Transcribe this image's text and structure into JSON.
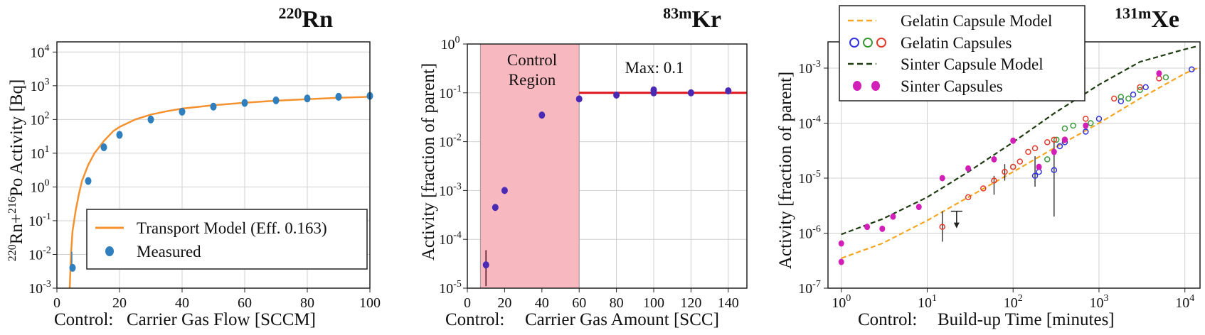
{
  "chart_data": [
    {
      "type": "scatter",
      "title": {
        "sup": "220",
        "main": "Rn"
      },
      "ylabel": {
        "sup1": "220",
        "mid": "Rn+",
        "sup2": "216",
        "end": "Po Activity [Bq]"
      },
      "xlabel": {
        "prefix": "Control:",
        "text": "Carrier Gas Flow [SCCM]"
      },
      "xlim": [
        0,
        100
      ],
      "ylim": [
        0.001,
        20000
      ],
      "yscale": "log",
      "grid": true,
      "legend_position": "lower-right",
      "xticks": [
        "0",
        "20",
        "40",
        "60",
        "80",
        "100"
      ],
      "yticks": [
        {
          "b": "10",
          "e": "-3"
        },
        {
          "b": "10",
          "e": "-2"
        },
        {
          "b": "10",
          "e": "-1"
        },
        {
          "b": "10",
          "e": "0"
        },
        {
          "b": "10",
          "e": "1"
        },
        {
          "b": "10",
          "e": "2"
        },
        {
          "b": "10",
          "e": "3"
        },
        {
          "b": "10",
          "e": "4"
        }
      ],
      "legend": [
        {
          "label": "Transport Model (Eff. 0.163)",
          "kind": "line"
        },
        {
          "label": "Measured",
          "kind": "marker"
        }
      ],
      "model": {
        "name": "Transport Model (Eff. 0.163)",
        "color": "#f5922f",
        "x": [
          4.1,
          4.5,
          5,
          6,
          7,
          8,
          10,
          12,
          15,
          18,
          20,
          25,
          30,
          35,
          40,
          50,
          60,
          70,
          80,
          90,
          100
        ],
        "y": [
          0.001,
          0.01,
          0.05,
          0.2,
          0.6,
          1.5,
          4.5,
          10,
          23,
          45,
          60,
          100,
          140,
          175,
          210,
          265,
          315,
          360,
          400,
          440,
          470
        ]
      },
      "measured": {
        "name": "Measured",
        "color": "#2f7fbf",
        "x": [
          5,
          10,
          15,
          20,
          30,
          40,
          50,
          60,
          70,
          80,
          90,
          100
        ],
        "y": [
          0.004,
          1.5,
          15,
          35,
          100,
          170,
          240,
          310,
          370,
          420,
          470,
          500
        ]
      }
    },
    {
      "type": "scatter",
      "title": {
        "sup": "83m",
        "main": "Kr"
      },
      "ylabel": {
        "text": "Activity [fraction of parent]"
      },
      "xlabel": {
        "prefix": "Control:",
        "text": "Carrier Gas Amount [SCC]"
      },
      "xlim": [
        0,
        150
      ],
      "ylim": [
        1e-05,
        1
      ],
      "yscale": "log",
      "grid": true,
      "xticks": [
        "0",
        "20",
        "40",
        "60",
        "80",
        "100",
        "120",
        "140"
      ],
      "yticks": [
        {
          "b": "10",
          "e": "-5"
        },
        {
          "b": "10",
          "e": "-4"
        },
        {
          "b": "10",
          "e": "-3"
        },
        {
          "b": "10",
          "e": "-2"
        },
        {
          "b": "10",
          "e": "-1"
        },
        {
          "b": "10",
          "e": "0"
        }
      ],
      "control_region": {
        "label_line1": "Control",
        "label_line2": "Region",
        "x_range": [
          7,
          60
        ],
        "color": "#f7b8c0"
      },
      "max_line": {
        "label": "Max:  0.1",
        "value": 0.1,
        "x_range": [
          60,
          150
        ],
        "color": "#e0141e"
      },
      "points": {
        "color": "#4a2ab5",
        "x": [
          10,
          15,
          20,
          40,
          60,
          80,
          100,
          100,
          120,
          140
        ],
        "y": [
          3e-05,
          0.00045,
          0.001,
          0.035,
          0.075,
          0.09,
          0.1,
          0.115,
          0.1,
          0.11
        ]
      },
      "errorbars": [
        {
          "x": 10,
          "low": 1.1e-05,
          "high": 6e-05
        }
      ]
    },
    {
      "type": "scatter",
      "title": {
        "sup": "131m",
        "main": "Xe"
      },
      "ylabel": {
        "text": "Activity [fraction of parent]"
      },
      "xlabel": {
        "prefix": "Control:",
        "text": "Build-up Time [minutes]"
      },
      "xlim": [
        0.7,
        15000
      ],
      "ylim": [
        1e-07,
        0.003
      ],
      "xscale": "log",
      "yscale": "log",
      "grid": true,
      "legend_position": "top-left",
      "xticks": [
        {
          "b": "10",
          "e": "0"
        },
        {
          "b": "10",
          "e": "1"
        },
        {
          "b": "10",
          "e": "2"
        },
        {
          "b": "10",
          "e": "3"
        },
        {
          "b": "10",
          "e": "4"
        }
      ],
      "yticks": [
        {
          "b": "10",
          "e": "-7"
        },
        {
          "b": "10",
          "e": "-6"
        },
        {
          "b": "10",
          "e": "-5"
        },
        {
          "b": "10",
          "e": "-4"
        },
        {
          "b": "10",
          "e": "-3"
        }
      ],
      "legend": [
        {
          "label": "Gelatin Capsule Model",
          "kind": "dash-orange"
        },
        {
          "label": "Gelatin Capsules",
          "kind": "rings"
        },
        {
          "label": "Sinter Capsule Model",
          "kind": "dash-dark"
        },
        {
          "label": "Sinter Capsules",
          "kind": "dots"
        }
      ],
      "gelatin_model": {
        "color": "#f5a623",
        "x": [
          1,
          3,
          10,
          30,
          100,
          300,
          1000,
          3000,
          10000,
          14000
        ],
        "y": [
          3.5e-07,
          6.5e-07,
          1.7e-06,
          4.5e-06,
          1.3e-05,
          3.5e-05,
          0.0001,
          0.00028,
          0.0008,
          0.001
        ]
      },
      "sinter_model": {
        "color": "#1f3b12",
        "x": [
          1,
          3,
          10,
          30,
          100,
          300,
          1000,
          3000,
          10000,
          14000
        ],
        "y": [
          9.5e-07,
          1.8e-06,
          4.5e-06,
          1.3e-05,
          4.5e-05,
          0.00015,
          0.0005,
          0.0013,
          0.0022,
          0.0025
        ]
      },
      "gelatin_blue": {
        "color": "#3333dd",
        "x": [
          180,
          200,
          300,
          350,
          400,
          700,
          1000,
          1800,
          2500,
          3500,
          12000
        ],
        "y": [
          1.1e-05,
          1.3e-05,
          1.4e-05,
          3.8e-05,
          4.5e-05,
          7e-05,
          0.00012,
          0.00025,
          0.00033,
          0.00045,
          0.00095
        ]
      },
      "gelatin_green": {
        "color": "#3a9a3a",
        "x": [
          100,
          250,
          320,
          400,
          500,
          800,
          1800,
          2200,
          3000,
          6000
        ],
        "y": [
          1.6e-05,
          2.2e-05,
          5e-05,
          8e-05,
          9e-05,
          0.0001,
          0.0003,
          0.00028,
          0.0004,
          0.00068
        ]
      },
      "gelatin_red": {
        "color": "#e23a2a",
        "x": [
          15,
          30,
          45,
          60,
          80,
          100,
          120,
          150,
          180,
          250,
          300,
          400,
          700,
          1500,
          3000,
          5000
        ],
        "y": [
          1.3e-06,
          4.5e-06,
          6.5e-06,
          9e-06,
          1.3e-05,
          1.6e-05,
          2e-05,
          3e-05,
          3.5e-05,
          4.5e-05,
          5e-05,
          5e-05,
          0.00012,
          0.00028,
          0.00045,
          0.00065
        ]
      },
      "sinter_points": {
        "color": "#d21fb8",
        "x": [
          1,
          1,
          2,
          3,
          4,
          8,
          15,
          30,
          60,
          100,
          200,
          300,
          400,
          700,
          5000
        ],
        "y": [
          3e-07,
          6.5e-07,
          1.3e-06,
          1.2e-06,
          2e-06,
          3e-06,
          1e-05,
          1.5e-05,
          2.2e-05,
          4.8e-05,
          1.6e-05,
          3e-05,
          5e-05,
          9e-05,
          0.0008
        ]
      },
      "errorbars": [
        {
          "x": 15,
          "low": 7e-07,
          "high": 2.5e-06
        },
        {
          "x": 60,
          "low": 5e-06,
          "high": 1.1e-05
        },
        {
          "x": 80,
          "low": 9e-06,
          "high": 1.8e-05
        },
        {
          "x": 180,
          "low": 7e-06,
          "high": 2.5e-05
        },
        {
          "x": 300,
          "low": 2e-06,
          "high": 5e-05
        }
      ],
      "upper_limit": {
        "x": 22,
        "y": 2.5e-06
      }
    }
  ]
}
